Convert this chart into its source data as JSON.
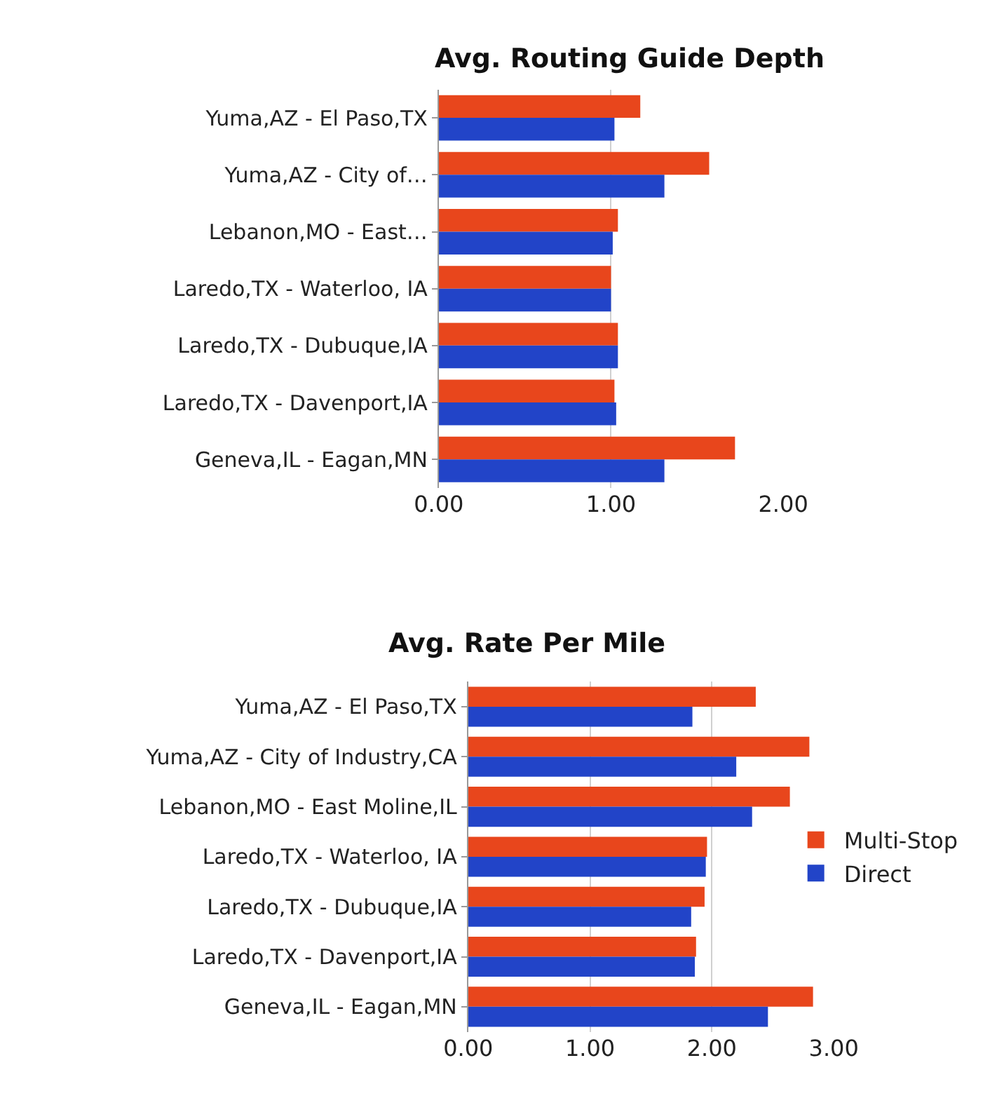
{
  "chart_data": [
    {
      "type": "bar",
      "orientation": "horizontal",
      "title": "Avg. Routing Guide Depth",
      "categories": [
        "Yuma,AZ - El Paso,TX",
        "Yuma,AZ - City of…",
        "Lebanon,MO - East…",
        "Laredo,TX - Waterloo, IA",
        "Laredo,TX - Dubuque,IA",
        "Laredo,TX - Davenport,IA",
        "Geneva,IL - Eagan,MN"
      ],
      "series": [
        {
          "color": "#e8461c",
          "values": [
            1.17,
            1.57,
            1.04,
            1.0,
            1.04,
            1.02,
            1.72
          ]
        },
        {
          "color": "#2244c8",
          "values": [
            1.02,
            1.31,
            1.01,
            1.0,
            1.04,
            1.03,
            1.31
          ]
        }
      ],
      "xlim": [
        0,
        2
      ],
      "xticks": [
        {
          "value": 0,
          "label": "0.00"
        },
        {
          "value": 1,
          "label": "1.00"
        },
        {
          "value": 2,
          "label": "2.00"
        }
      ],
      "grid": "x",
      "legend": false
    },
    {
      "type": "bar",
      "orientation": "horizontal",
      "title": "Avg. Rate Per Mile",
      "categories": [
        "Yuma,AZ - El Paso,TX",
        "Yuma,AZ - City of Industry,CA",
        "Lebanon,MO - East Moline,IL",
        "Laredo,TX - Waterloo, IA",
        "Laredo,TX - Dubuque,IA",
        "Laredo,TX - Davenport,IA",
        "Geneva,IL - Eagan,MN"
      ],
      "series": [
        {
          "name": "Multi-Stop",
          "color": "#e8461c",
          "values": [
            2.36,
            2.8,
            2.64,
            1.96,
            1.94,
            1.87,
            2.83
          ]
        },
        {
          "name": "Direct",
          "color": "#2244c8",
          "values": [
            1.84,
            2.2,
            2.33,
            1.95,
            1.83,
            1.86,
            2.46
          ]
        }
      ],
      "xlim": [
        0,
        3
      ],
      "xticks": [
        {
          "value": 0,
          "label": "0.00"
        },
        {
          "value": 1,
          "label": "1.00"
        },
        {
          "value": 2,
          "label": "2.00"
        },
        {
          "value": 3,
          "label": "3.00"
        }
      ],
      "grid": "x",
      "legend": "right"
    }
  ]
}
